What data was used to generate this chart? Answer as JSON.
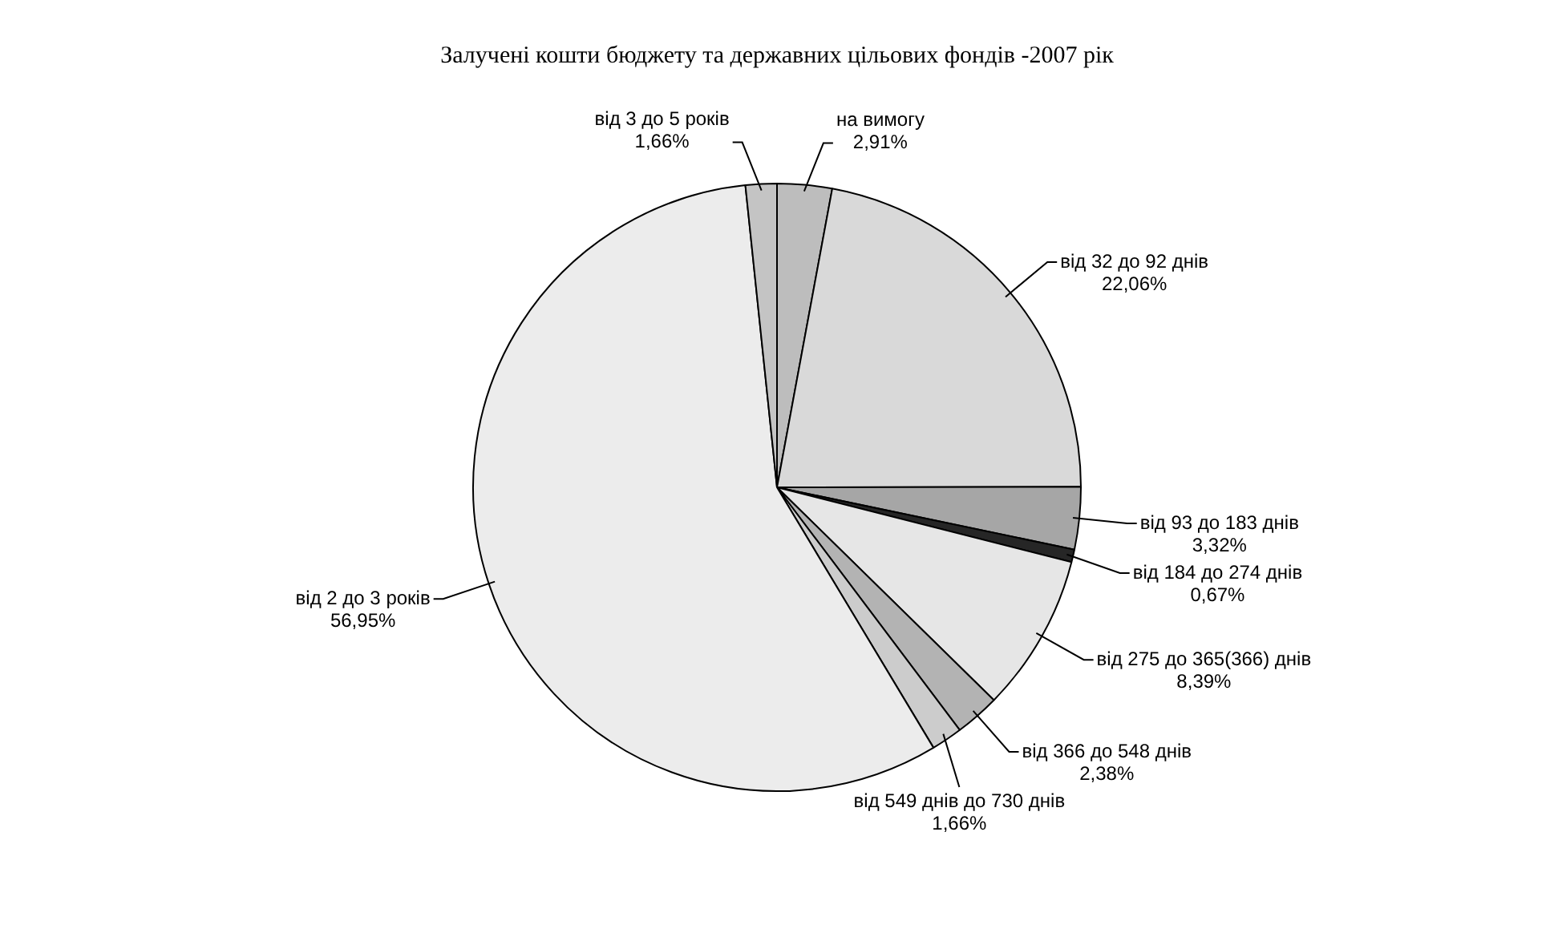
{
  "chart_data": {
    "type": "pie",
    "title": "Залучені кошти бюджету та державних цільових фондів -2007 рік",
    "categories": [
      "на вимогу",
      "від 32 до 92 днів",
      "від 93 до 183 днів",
      "від 184 до 274 днів",
      "від 275 до 365(366) днів",
      "від 366 до 548 днів",
      "від 549 днів до 730 днів",
      "від 2 до 3 років",
      "від 3 до 5 років"
    ],
    "values": [
      2.91,
      22.06,
      3.32,
      0.67,
      8.39,
      2.38,
      1.66,
      56.95,
      1.66
    ],
    "value_labels": [
      "2,91%",
      "22,06%",
      "3,32%",
      "0,67%",
      "8,39%",
      "2,38%",
      "1,66%",
      "56,95%",
      "1,66%"
    ],
    "colors": [
      "#bdbdbd",
      "#d9d9d9",
      "#a6a6a6",
      "#262626",
      "#e6e6e6",
      "#b3b3b3",
      "#cccccc",
      "#ececec",
      "#c4c4c4"
    ]
  }
}
